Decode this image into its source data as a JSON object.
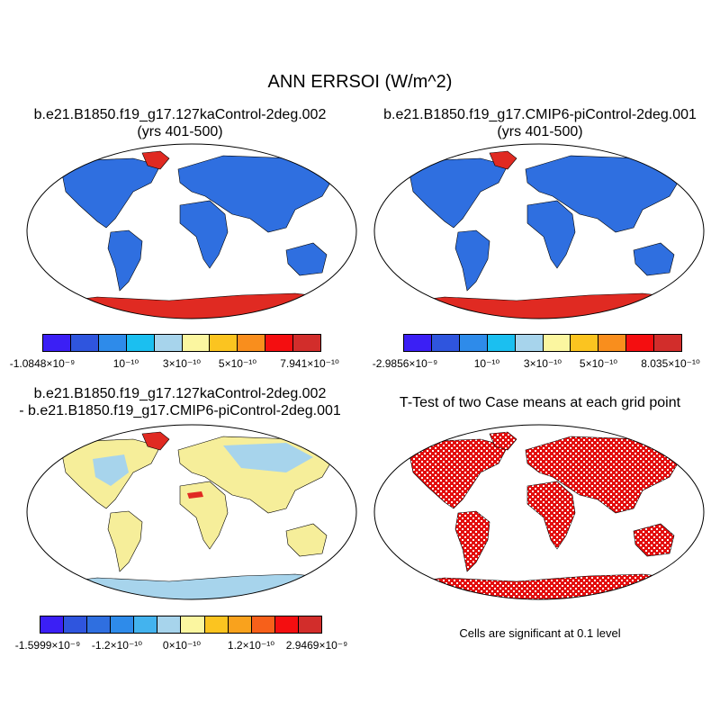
{
  "figure": {
    "title": "ANN ERRSOI (W/m^2)"
  },
  "panels": {
    "top_left": {
      "title_line1": "b.e21.B1850.f19_g17.127kaControl-2deg.002",
      "title_line2": "(yrs 401-500)",
      "colorbar_colors": [
        "#3b1ff5",
        "#2f55de",
        "#2e8bea",
        "#1bbff0",
        "#a7d4ec",
        "#fbf6a0",
        "#fbc420",
        "#f98e1d",
        "#f40e10",
        "#d22d2b"
      ],
      "colorbar_labels": [
        "-1.0848×10⁻⁹",
        "10⁻¹⁰",
        "3×10⁻¹⁰",
        "5×10⁻¹⁰",
        "7.941×10⁻¹⁰"
      ]
    },
    "top_right": {
      "title_line1": "b.e21.B1850.f19_g17.CMIP6-piControl-2deg.001",
      "title_line2": "(yrs 401-500)",
      "colorbar_colors": [
        "#3b1ff5",
        "#2f55de",
        "#2e8bea",
        "#1bbff0",
        "#a7d4ec",
        "#fbf6a0",
        "#fbc420",
        "#f98e1d",
        "#f40e10",
        "#d22d2b"
      ],
      "colorbar_labels": [
        "-2.9856×10⁻⁹",
        "10⁻¹⁰",
        "3×10⁻¹⁰",
        "5×10⁻¹⁰",
        "8.035×10⁻¹⁰"
      ]
    },
    "bottom_left": {
      "title_line1": "b.e21.B1850.f19_g17.127kaControl-2deg.002",
      "title_line2": "- b.e21.B1850.f19_g17.CMIP6-piControl-2deg.001",
      "colorbar_colors": [
        "#3b1ff5",
        "#2f55de",
        "#2f6fe0",
        "#2e8bea",
        "#43b3ee",
        "#a7d4ec",
        "#fbf6a0",
        "#fbc420",
        "#f9a21d",
        "#f7601a",
        "#f40e10",
        "#d22d2b"
      ],
      "colorbar_labels": [
        "-1.5999×10⁻⁹",
        "-1.2×10⁻¹⁰",
        "0×10⁻¹⁰",
        "1.2×10⁻¹⁰",
        "2.9469×10⁻⁹"
      ]
    },
    "bottom_right": {
      "title_line1": "T-Test of two Case means at each grid point",
      "note": "Cells are significant at 0.1 level"
    }
  },
  "styles": {
    "land_blue": "#2f6fe0",
    "antarctic_red": "#e02a22",
    "diff_yellow": "#f6ee9a",
    "diff_lightblue": "#a7d4ec",
    "sig_red": "#e30d0d",
    "coastline": "#000000"
  }
}
